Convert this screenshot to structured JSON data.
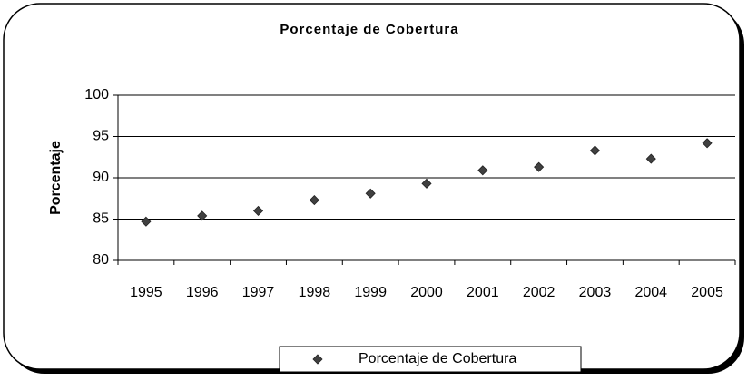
{
  "chart_data": {
    "type": "scatter",
    "title": "Porcentaje de Cobertura",
    "y_label": "Porcentaje",
    "categories": [
      "1995",
      "1996",
      "1997",
      "1998",
      "1999",
      "2000",
      "2001",
      "2002",
      "2003",
      "2004",
      "2005"
    ],
    "series": [
      {
        "name": "Porcentaje de Cobertura",
        "color": "#404040",
        "values": [
          84.7,
          85.4,
          86.0,
          87.3,
          88.1,
          89.3,
          90.9,
          91.3,
          93.3,
          92.3,
          94.2
        ]
      }
    ],
    "ylim": [
      80,
      100
    ],
    "yticks": [
      80,
      85,
      90,
      95,
      100
    ],
    "grid": true,
    "legend": "bottom"
  }
}
